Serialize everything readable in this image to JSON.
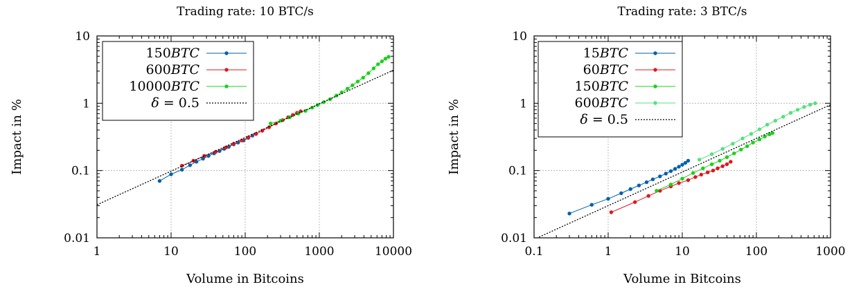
{
  "chart_data": [
    {
      "type": "line",
      "title": "Trading rate: 10 BTC/s",
      "xlabel": "Volume in Bitcoins",
      "ylabel": "Impact in %",
      "xscale": "log",
      "yscale": "log",
      "xlim": [
        1,
        10000
      ],
      "ylim": [
        0.01,
        10
      ],
      "xticks": [
        "1",
        "10",
        "100",
        "1000",
        "10000"
      ],
      "yticks": [
        "10",
        "1",
        "0.1",
        "0.01"
      ],
      "grid": true,
      "legend_position": "top-left",
      "series": [
        {
          "name": "150BTC",
          "legend_var": "BTC",
          "legend_num": "150",
          "color": "#0060ad",
          "x": [
            7,
            10,
            14,
            18,
            22,
            27,
            32,
            38,
            45,
            52,
            60,
            70,
            80,
            95,
            110,
            125,
            140
          ],
          "y": [
            0.07,
            0.088,
            0.103,
            0.12,
            0.135,
            0.15,
            0.165,
            0.18,
            0.195,
            0.21,
            0.225,
            0.245,
            0.26,
            0.28,
            0.305,
            0.33,
            0.35
          ]
        },
        {
          "name": "600BTC",
          "legend_var": "BTC",
          "legend_num": "600",
          "color": "#dd181f",
          "x": [
            14,
            20,
            28,
            40,
            55,
            70,
            90,
            110,
            140,
            170,
            210,
            260,
            320,
            380,
            440,
            500,
            560
          ],
          "y": [
            0.118,
            0.14,
            0.165,
            0.19,
            0.22,
            0.25,
            0.28,
            0.31,
            0.35,
            0.39,
            0.44,
            0.5,
            0.56,
            0.62,
            0.67,
            0.72,
            0.76
          ]
        },
        {
          "name": "10000BTC",
          "legend_var": "BTC",
          "legend_num": "10000",
          "color": "#1cd01c",
          "x": [
            220,
            300,
            400,
            520,
            650,
            800,
            950,
            1150,
            1400,
            1700,
            2000,
            2400,
            2800,
            3300,
            3900,
            4600,
            5400,
            6200,
            7000,
            7800,
            8600
          ],
          "y": [
            0.5,
            0.55,
            0.62,
            0.7,
            0.77,
            0.86,
            0.94,
            1.04,
            1.15,
            1.3,
            1.45,
            1.65,
            1.85,
            2.1,
            2.4,
            2.8,
            3.3,
            3.8,
            4.2,
            4.6,
            4.9
          ]
        },
        {
          "name": "δ = 0.5",
          "legend_var": "δ",
          "legend_num": " = 0.5",
          "color": "#000000",
          "dash": true,
          "x": [
            1,
            10000
          ],
          "y": [
            0.031,
            3.1
          ]
        }
      ]
    },
    {
      "type": "line",
      "title": "Trading rate: 3 BTC/s",
      "xlabel": "Volume in Bitcoins",
      "ylabel": "Impact in %",
      "xscale": "log",
      "yscale": "log",
      "xlim": [
        0.1,
        1000
      ],
      "ylim": [
        0.01,
        10
      ],
      "xticks": [
        "0.1",
        "1",
        "10",
        "100",
        "1000"
      ],
      "yticks": [
        "10",
        "1",
        "0.1",
        "0.01"
      ],
      "grid": true,
      "legend_position": "top-left",
      "series": [
        {
          "name": "15BTC",
          "legend_var": "BTC",
          "legend_num": "15",
          "color": "#0060ad",
          "x": [
            0.3,
            0.6,
            1.0,
            1.5,
            2.0,
            2.6,
            3.3,
            4.0,
            5.0,
            6.0,
            7.0,
            8.0,
            9.0,
            10.0,
            11.0,
            12.0
          ],
          "y": [
            0.023,
            0.031,
            0.038,
            0.046,
            0.053,
            0.06,
            0.067,
            0.074,
            0.082,
            0.09,
            0.098,
            0.106,
            0.114,
            0.122,
            0.13,
            0.14
          ]
        },
        {
          "name": "60BTC",
          "legend_var": "BTC",
          "legend_num": "60",
          "color": "#dd181f",
          "x": [
            1.1,
            2.3,
            3.5,
            5.0,
            7.0,
            9.0,
            12,
            15,
            18,
            22,
            26,
            30,
            35,
            40,
            45
          ],
          "y": [
            0.024,
            0.034,
            0.042,
            0.05,
            0.058,
            0.065,
            0.072,
            0.08,
            0.087,
            0.094,
            0.1,
            0.108,
            0.116,
            0.124,
            0.135
          ]
        },
        {
          "name": "150BTC",
          "legend_var": "BTC",
          "legend_num": "150",
          "color": "#1cd01c",
          "x": [
            4.5,
            7,
            10,
            14,
            19,
            25,
            32,
            40,
            50,
            62,
            75,
            90,
            110,
            130,
            150,
            165
          ],
          "y": [
            0.05,
            0.062,
            0.076,
            0.092,
            0.108,
            0.124,
            0.14,
            0.158,
            0.18,
            0.205,
            0.23,
            0.26,
            0.29,
            0.32,
            0.345,
            0.36
          ]
        },
        {
          "name": "600BTC",
          "legend_var": "BTC",
          "legend_num": "600",
          "color": "#55e07c",
          "x": [
            17,
            25,
            35,
            48,
            65,
            85,
            110,
            140,
            180,
            230,
            290,
            360,
            440,
            530,
            620
          ],
          "y": [
            0.145,
            0.175,
            0.21,
            0.25,
            0.3,
            0.35,
            0.41,
            0.48,
            0.55,
            0.63,
            0.72,
            0.8,
            0.88,
            0.95,
            1.0
          ]
        },
        {
          "name": "δ = 0.5",
          "legend_var": "δ",
          "legend_num": " = 0.5",
          "color": "#000000",
          "dash": true,
          "x": [
            0.1,
            1000
          ],
          "y": [
            0.0095,
            0.95
          ]
        }
      ]
    }
  ]
}
